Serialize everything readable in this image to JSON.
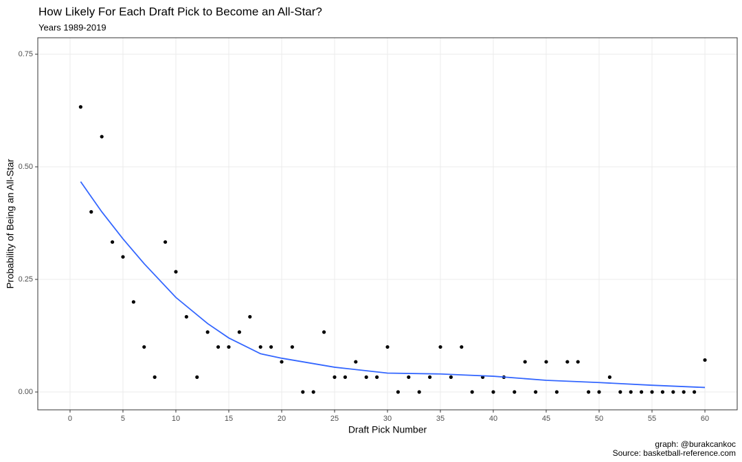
{
  "chart_data": {
    "type": "scatter",
    "title": "How Likely For Each Draft Pick to Become an All-Star?",
    "subtitle": "Years 1989-2019",
    "x_label": "Draft Pick Number",
    "y_label": "Probability of Being an All-Star",
    "caption": [
      "graph: @burakcankoc",
      "Source: basketball-reference.com"
    ],
    "xlim": [
      -3.05,
      63.05
    ],
    "ylim": [
      -0.0396,
      0.7866
    ],
    "xticks": [
      0,
      5,
      10,
      15,
      20,
      25,
      30,
      35,
      40,
      45,
      50,
      55,
      60
    ],
    "yticks": [
      {
        "value": 0,
        "label": "0.00"
      },
      {
        "value": 0.25,
        "label": "0.25"
      },
      {
        "value": 0.5,
        "label": "0.50"
      },
      {
        "value": 0.75,
        "label": "0.75"
      }
    ],
    "grid": true,
    "series": [
      {
        "style": "points",
        "color": "#000000",
        "x": [
          1,
          2,
          3,
          4,
          5,
          6,
          7,
          8,
          9,
          10,
          11,
          12,
          13,
          14,
          15,
          16,
          17,
          18,
          19,
          20,
          21,
          22,
          23,
          24,
          25,
          26,
          27,
          28,
          29,
          30,
          31,
          32,
          33,
          34,
          35,
          36,
          37,
          38,
          39,
          40,
          41,
          42,
          43,
          44,
          45,
          46,
          47,
          48,
          49,
          50,
          51,
          52,
          53,
          54,
          55,
          56,
          57,
          58,
          59,
          60
        ],
        "values": [
          0.633,
          0.4,
          0.567,
          0.333,
          0.3,
          0.2,
          0.1,
          0.033,
          0.333,
          0.267,
          0.167,
          0.033,
          0.133,
          0.1,
          0.1,
          0.133,
          0.167,
          0.1,
          0.1,
          0.067,
          0.1,
          0,
          0,
          0.133,
          0.033,
          0.033,
          0.067,
          0.033,
          0.033,
          0.1,
          0,
          0.033,
          0,
          0.033,
          0.1,
          0.033,
          0.1,
          0,
          0.033,
          0,
          0.033,
          0,
          0.067,
          0,
          0.067,
          0,
          0.067,
          0.067,
          0,
          0,
          0.033,
          0,
          0,
          0,
          0,
          0,
          0,
          0,
          0,
          0.071
        ]
      },
      {
        "style": "line",
        "color": "#3366ff",
        "x": [
          1,
          3,
          5,
          7,
          10,
          13,
          15,
          18,
          20,
          25,
          30,
          35,
          37,
          40,
          45,
          50,
          55,
          60
        ],
        "values": [
          0.467,
          0.4,
          0.34,
          0.285,
          0.21,
          0.152,
          0.12,
          0.085,
          0.075,
          0.055,
          0.042,
          0.04,
          0.038,
          0.035,
          0.026,
          0.021,
          0.015,
          0.01
        ]
      }
    ]
  }
}
